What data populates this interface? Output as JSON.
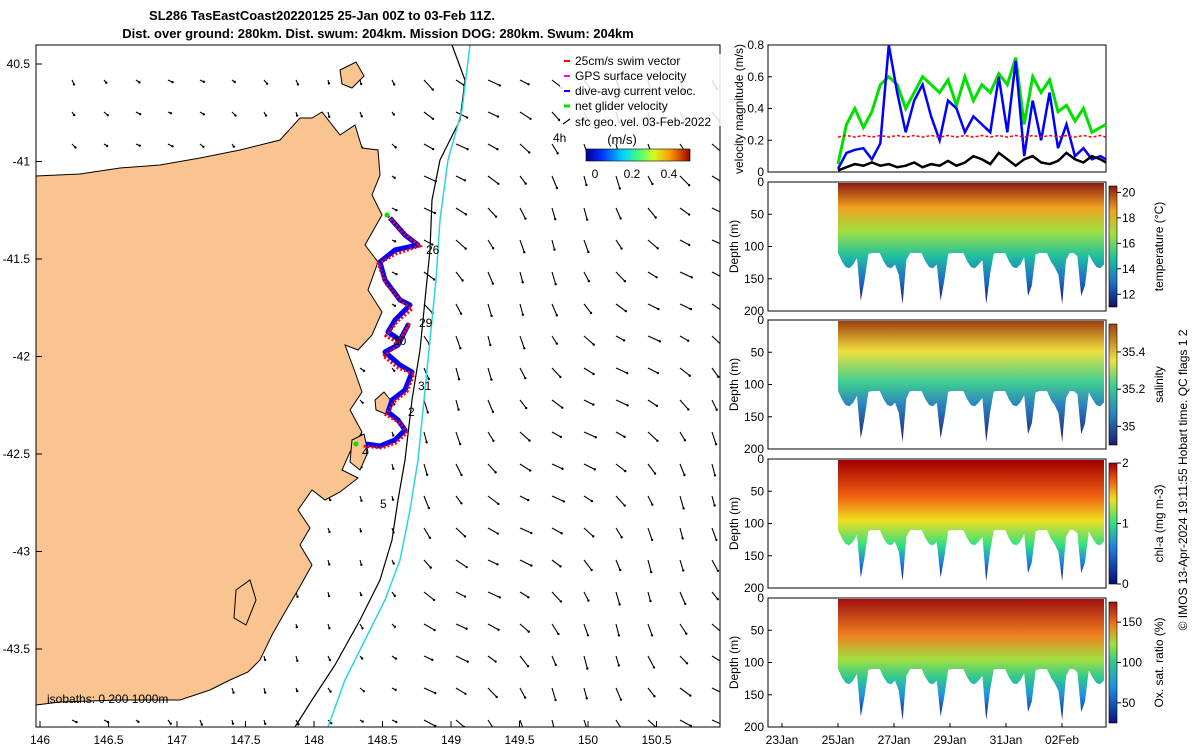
{
  "title": {
    "line1": "SL286 TasEastCoast20220125 25-Jan 00Z to 03-Feb 11Z.",
    "line2": "Dist. over ground: 280km. Dist. swum: 204km. Mission DOG: 280km. Swum: 204km"
  },
  "map": {
    "lon_ticks": [
      "146",
      "146.5",
      "147",
      "147.5",
      "148",
      "148.5",
      "149",
      "149.5",
      "150",
      "150.5"
    ],
    "lat_ticks": [
      "40.5",
      "-41",
      "-41.5",
      "-42",
      "-42.5",
      "-43",
      "-43.5"
    ],
    "day_labels": [
      "26",
      "29",
      "30",
      "31",
      "2",
      "4",
      "5",
      "4h"
    ],
    "isobath_note": "isobaths: 0   200  1000m",
    "legend": [
      {
        "label": "25cm/s swim vector",
        "color": "#ff0000"
      },
      {
        "label": "GPS surface velocity",
        "color": "#ff00ff"
      },
      {
        "label": "dive-avg current veloc.",
        "color": "#0000ff"
      },
      {
        "label": "net glider velocity",
        "color": "#00e000"
      },
      {
        "label": "sfc geo. vel. 03-Feb-2022",
        "color": "#000000"
      }
    ],
    "colorbar": {
      "label": "(m/s)",
      "ticks": [
        "0",
        "0.2",
        "0.4"
      ]
    },
    "colors": {
      "land": "#f9c48f",
      "isobath_200": "#000000",
      "isobath_1000": "#28d6e0",
      "track_red": "#ff0000",
      "track_blue": "#0000ff"
    }
  },
  "chart_data": [
    {
      "type": "line",
      "ylabel": "velocity magnitude (m/s)",
      "ylim": [
        0,
        0.8
      ],
      "yticks": [
        "0",
        "0.2",
        "0.4",
        "0.6",
        "0.8"
      ],
      "x_days": [
        0,
        0.3,
        0.6,
        0.9,
        1.2,
        1.5,
        1.8,
        2.1,
        2.4,
        2.7,
        3.0,
        3.3,
        3.6,
        3.9,
        4.2,
        4.5,
        4.8,
        5.1,
        5.4,
        5.7,
        6.0,
        6.3,
        6.6,
        6.9,
        7.2,
        7.5,
        7.8,
        8.1,
        8.4,
        8.7,
        9.0,
        9.3,
        9.5
      ],
      "series": [
        {
          "name": "net glider velocity",
          "color": "#00e000",
          "values": [
            0.05,
            0.3,
            0.4,
            0.28,
            0.38,
            0.55,
            0.6,
            0.55,
            0.4,
            0.5,
            0.6,
            0.55,
            0.5,
            0.58,
            0.42,
            0.6,
            0.45,
            0.55,
            0.5,
            0.62,
            0.55,
            0.72,
            0.3,
            0.6,
            0.5,
            0.58,
            0.38,
            0.42,
            0.32,
            0.4,
            0.25,
            0.28,
            0.3
          ]
        },
        {
          "name": "dive-avg current veloc.",
          "color": "#0000ff",
          "values": [
            0.02,
            0.12,
            0.14,
            0.15,
            0.08,
            0.18,
            0.8,
            0.5,
            0.25,
            0.45,
            0.55,
            0.35,
            0.2,
            0.45,
            0.4,
            0.25,
            0.35,
            0.3,
            0.25,
            0.6,
            0.25,
            0.7,
            0.1,
            0.45,
            0.2,
            0.5,
            0.15,
            0.3,
            0.1,
            0.15,
            0.08,
            0.1,
            0.08
          ]
        },
        {
          "name": "swim speed",
          "color": "#ff0000",
          "values": [
            0.22,
            0.23,
            0.22,
            0.23,
            0.22,
            0.23,
            0.22,
            0.23,
            0.22,
            0.23,
            0.22,
            0.23,
            0.22,
            0.23,
            0.22,
            0.23,
            0.22,
            0.23,
            0.22,
            0.23,
            0.22,
            0.23,
            0.22,
            0.23,
            0.22,
            0.23,
            0.22,
            0.23,
            0.22,
            0.23,
            0.22,
            0.23,
            0.22
          ]
        },
        {
          "name": "sfc geo. vel.",
          "color": "#000000",
          "values": [
            0.01,
            0.03,
            0.05,
            0.04,
            0.06,
            0.04,
            0.05,
            0.03,
            0.04,
            0.06,
            0.03,
            0.05,
            0.04,
            0.07,
            0.04,
            0.06,
            0.1,
            0.08,
            0.05,
            0.12,
            0.08,
            0.04,
            0.08,
            0.1,
            0.06,
            0.05,
            0.07,
            0.12,
            0.08,
            0.06,
            0.1,
            0.08,
            0.06
          ]
        }
      ]
    },
    {
      "type": "heatmap",
      "variable": "temperature",
      "cbar_label": "temperature (°C)",
      "cbar_ticks": [
        "12",
        "14",
        "16",
        "18",
        "20"
      ],
      "vmin": 11,
      "vmax": 20.5,
      "ylabel": "Depth (m)",
      "yticks": [
        "0",
        "50",
        "100",
        "150",
        "200"
      ]
    },
    {
      "type": "heatmap",
      "variable": "salinity",
      "cbar_label": "salinity",
      "cbar_ticks": [
        "35",
        "35.2",
        "35.4"
      ],
      "vmin": 34.9,
      "vmax": 35.55,
      "ylabel": "Depth (m)",
      "yticks": [
        "0",
        "50",
        "100",
        "150",
        "200"
      ]
    },
    {
      "type": "heatmap",
      "variable": "chl-a",
      "cbar_label": "chl-a (mg m-3)",
      "cbar_ticks": [
        "0",
        "1",
        "2"
      ],
      "vmin": 0,
      "vmax": 2,
      "ylabel": "Depth (m)",
      "yticks": [
        "0",
        "50",
        "100",
        "150",
        "200"
      ]
    },
    {
      "type": "heatmap",
      "variable": "oxygen saturation",
      "cbar_label": "Ox. sat. ratio (%)",
      "cbar_ticks": [
        "50",
        "100",
        "150"
      ],
      "vmin": 25,
      "vmax": 175,
      "ylabel": "Depth (m)",
      "yticks": [
        "0",
        "50",
        "100",
        "150",
        "200"
      ]
    }
  ],
  "time_axis": {
    "ticks": [
      "23Jan",
      "25Jan",
      "27Jan",
      "29Jan",
      "31Jan",
      "02Feb"
    ]
  },
  "credit": "© IMOS 13-Apr-2024 19:11:55 Hobart time. QC flags 1  2"
}
